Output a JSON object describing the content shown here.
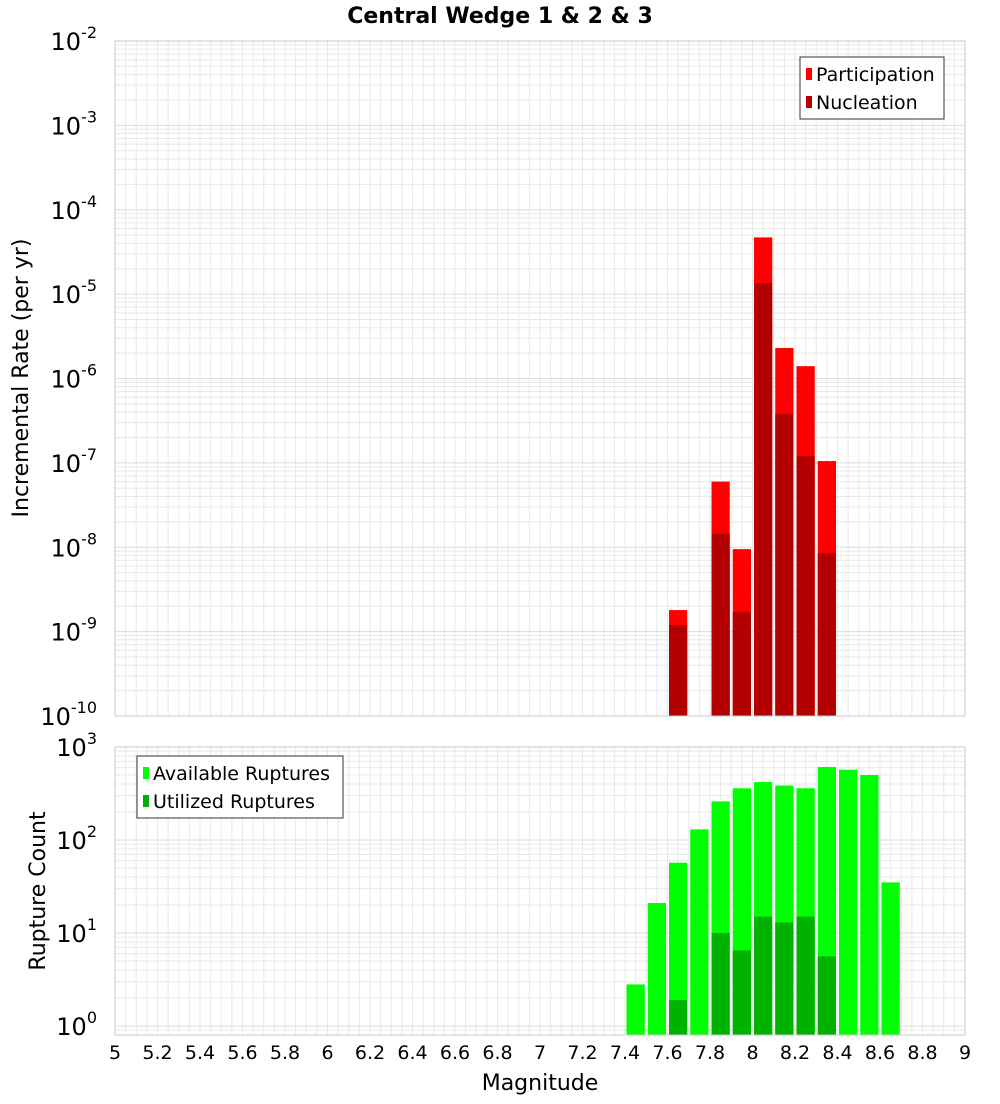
{
  "title": "Central Wedge 1 & 2 & 3",
  "xlabel": "Magnitude",
  "colors": {
    "participation": "#ff0000",
    "nucleation": "#b20000",
    "available": "#00ff00",
    "utilized": "#00b200",
    "grid": "#e8e8e8",
    "frame": "#c8c8c8"
  },
  "chart_data": [
    {
      "type": "bar",
      "ylabel": "Incremental Rate (per yr)",
      "xlim": [
        5,
        9
      ],
      "ylim": [
        1e-10,
        0.01
      ],
      "yscale": "log",
      "grid": true,
      "legend_position": "top-right",
      "ytick_exponents": [
        "-10",
        "-9",
        "-8",
        "-7",
        "-6",
        "-5",
        "-4",
        "-3",
        "-2"
      ],
      "series": [
        {
          "name": "Participation",
          "x": [
            7.65,
            7.85,
            7.95,
            8.05,
            8.15,
            8.25,
            8.35
          ],
          "values": [
            1.8e-09,
            6e-08,
            9.5e-09,
            4.7e-05,
            2.3e-06,
            1.4e-06,
            1.05e-07
          ]
        },
        {
          "name": "Nucleation",
          "x": [
            7.65,
            7.85,
            7.95,
            8.05,
            8.15,
            8.25,
            8.35
          ],
          "values": [
            1.2e-09,
            1.45e-08,
            1.7e-09,
            1.35e-05,
            3.8e-07,
            1.2e-07,
            8.5e-09
          ]
        }
      ]
    },
    {
      "type": "bar",
      "ylabel": "Rupture Count",
      "xlim": [
        5,
        9
      ],
      "ylim": [
        0.8,
        1000
      ],
      "yscale": "log",
      "grid": true,
      "legend_position": "top-left",
      "ytick_exponents": [
        "0",
        "1",
        "2",
        "3"
      ],
      "series": [
        {
          "name": "Available Ruptures",
          "x": [
            7.45,
            7.55,
            7.65,
            7.75,
            7.85,
            7.95,
            8.05,
            8.15,
            8.25,
            8.35,
            8.45,
            8.55,
            8.65
          ],
          "values": [
            2.8,
            21,
            57,
            130,
            260,
            360,
            420,
            385,
            360,
            610,
            570,
            500,
            35
          ]
        },
        {
          "name": "Utilized Ruptures",
          "x": [
            7.65,
            7.85,
            7.95,
            8.05,
            8.15,
            8.25,
            8.35
          ],
          "values": [
            1.9,
            10,
            6.5,
            15,
            13,
            15,
            5.6
          ]
        }
      ]
    }
  ],
  "xticks": [
    "5",
    "5.2",
    "5.4",
    "5.6",
    "5.8",
    "6",
    "6.2",
    "6.4",
    "6.6",
    "6.8",
    "7",
    "7.2",
    "7.4",
    "7.6",
    "7.8",
    "8",
    "8.2",
    "8.4",
    "8.6",
    "8.8",
    "9"
  ],
  "tick_base": "10"
}
